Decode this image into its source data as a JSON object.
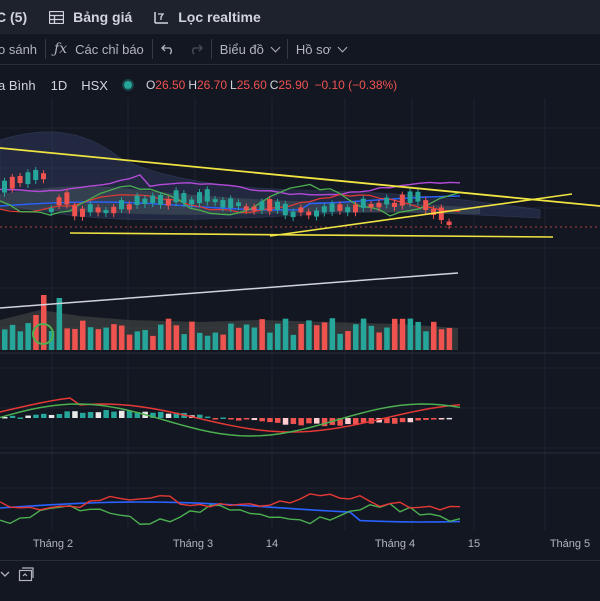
{
  "topbar": {
    "tab_partial": "C (5)",
    "price_board": "Bảng giá",
    "realtime_filter": "Lọc realtime"
  },
  "toolbar": {
    "compare": "o sánh",
    "indicators": "Các chỉ báo",
    "chart_type": "Biểu đồ",
    "profile": "Hồ sơ"
  },
  "legend": {
    "symbol": "a Bình",
    "timeframe": "1D",
    "exchange": "HSX",
    "open_label": "O",
    "open": "26.50",
    "high_label": "H",
    "high": "26.70",
    "low_label": "L",
    "low": "25.60",
    "close_label": "C",
    "close": "25.90",
    "change": "−0.10 (−0.38%)"
  },
  "x_axis": [
    "Tháng 2",
    "Tháng 3",
    "14",
    "Tháng 4",
    "15",
    "Tháng 5"
  ],
  "colors": {
    "background": "#131722",
    "up": "#26a69a",
    "down": "#ef5350",
    "trendline": "#f0e442",
    "ma_purple": "#b44bd8",
    "ma_green": "#4caf50",
    "ma_blue": "#2962ff",
    "ma_red": "#e53935",
    "volume_line": "#d1d4dc",
    "volume_marker": "#4caf50"
  },
  "icons": [
    "grid-icon",
    "filter-icon",
    "function-icon",
    "undo-icon",
    "redo-icon",
    "chevron-down-icon",
    "replay-icon"
  ]
}
